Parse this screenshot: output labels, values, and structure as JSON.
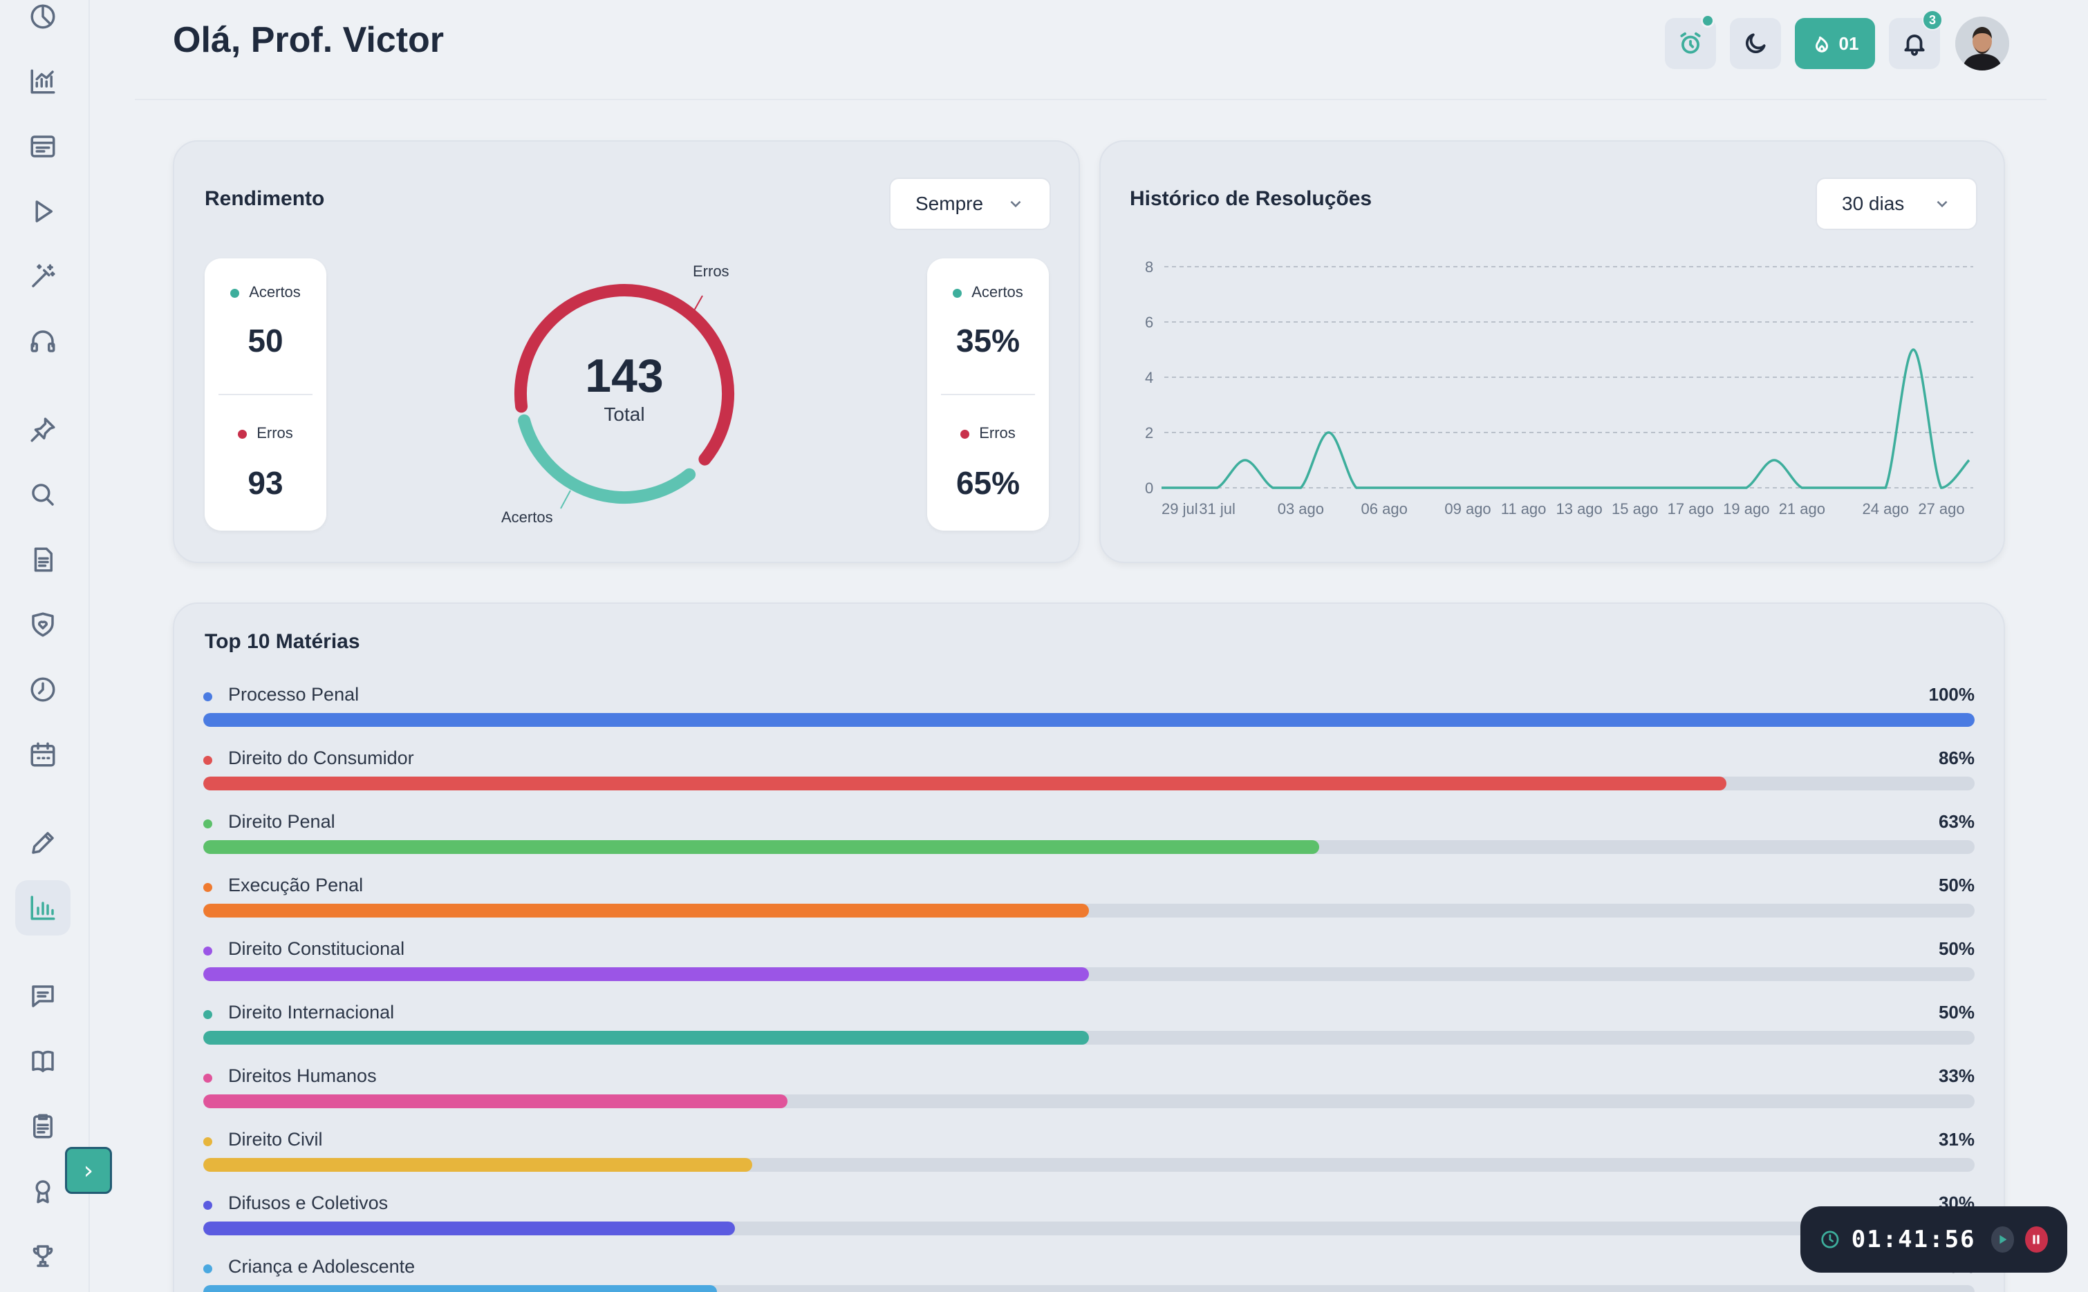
{
  "header": {
    "greeting": "Olá, Prof. Victor",
    "streak_count": "01",
    "notification_count": "3"
  },
  "sidebar": {
    "icons": [
      "pie-chart-icon",
      "line-chart-icon",
      "browser-window-icon",
      "play-icon",
      "magic-wand-icon",
      "headphones-icon",
      "pin-icon",
      "search-icon",
      "document-icon",
      "shield-heart-icon",
      "clock-icon",
      "calendar-icon",
      "pencil-icon",
      "bar-chart-icon",
      "message-icon",
      "book-icon",
      "clipboard-icon",
      "award-icon",
      "trophy-icon"
    ],
    "active": "bar-chart-icon"
  },
  "rendimento": {
    "title": "Rendimento",
    "filter": "Sempre",
    "acertos_label": "Acertos",
    "erros_label": "Erros",
    "acertos_count": "50",
    "erros_count": "93",
    "acertos_pct": "35%",
    "erros_pct": "65%",
    "total": "143",
    "total_label": "Total",
    "donut_label_erros": "Erros",
    "donut_label_acertos": "Acertos",
    "acertos_value": 50,
    "erros_value": 93
  },
  "historico": {
    "title": "Histórico de Resoluções",
    "filter": "30 dias"
  },
  "chart_data": {
    "type": "line",
    "title": "Histórico de Resoluções",
    "xlabel": "",
    "ylabel": "",
    "ylim": [
      0,
      8
    ],
    "yticks": [
      "0",
      "2",
      "4",
      "6",
      "8"
    ],
    "xticks": [
      "29 jul",
      "31 jul",
      "03 ago",
      "06 ago",
      "09 ago",
      "11 ago",
      "13 ago",
      "15 ago",
      "17 ago",
      "19 ago",
      "21 ago",
      "24 ago",
      "27 ago"
    ],
    "grid": true,
    "series": [
      {
        "values": [
          0,
          0,
          0,
          1,
          0,
          0,
          2,
          0,
          0,
          0,
          0,
          0,
          0,
          0,
          0,
          0,
          0,
          0,
          0,
          0,
          0,
          0,
          1,
          0,
          0,
          0,
          0,
          5,
          0,
          1
        ]
      }
    ]
  },
  "top10": {
    "title": "Top 10 Matérias",
    "items": [
      {
        "name": "Processo Penal",
        "pct": "100%",
        "value": 100,
        "color": "#4a7be2"
      },
      {
        "name": "Direito do Consumidor",
        "pct": "86%",
        "value": 86,
        "color": "#e05252"
      },
      {
        "name": "Direito Penal",
        "pct": "63%",
        "value": 63,
        "color": "#5cc06a"
      },
      {
        "name": "Execução Penal",
        "pct": "50%",
        "value": 50,
        "color": "#ef7a2f"
      },
      {
        "name": "Direito Constitucional",
        "pct": "50%",
        "value": 50,
        "color": "#9b55e6"
      },
      {
        "name": "Direito Internacional",
        "pct": "50%",
        "value": 50,
        "color": "#3dae9c"
      },
      {
        "name": "Direitos Humanos",
        "pct": "33%",
        "value": 33,
        "color": "#e0549a"
      },
      {
        "name": "Direito Civil",
        "pct": "31%",
        "value": 31,
        "color": "#e7b53c"
      },
      {
        "name": "Difusos e Coletivos",
        "pct": "30%",
        "value": 30,
        "color": "#5b5be0"
      },
      {
        "name": "Criança e Adolescente",
        "pct": "29%",
        "value": 29,
        "color": "#4aa8e0"
      }
    ]
  },
  "timer": {
    "time": "01:41:56"
  }
}
